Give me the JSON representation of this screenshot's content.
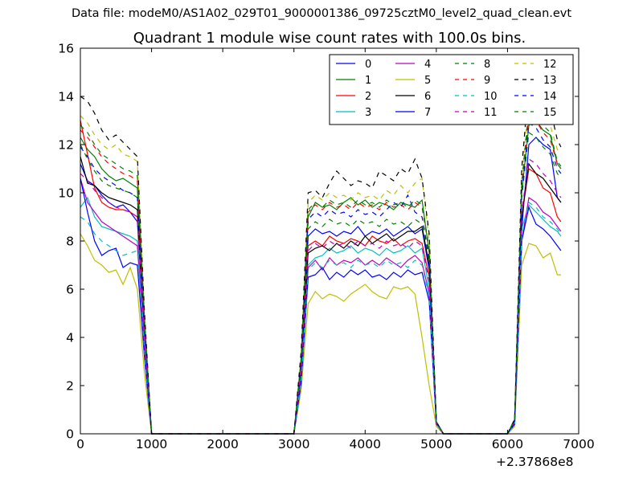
{
  "figure_header": "Data file: modeM0/AS1A02_029T01_9000001386_09725cztM0_level2_quad_clean.evt",
  "chart_data": {
    "type": "line",
    "title": "Quadrant 1 module wise count rates with 100.0s bins.",
    "xlabel": "",
    "ylabel": "",
    "x_offset_label": "+2.37868e8",
    "xlim": [
      0,
      7000
    ],
    "ylim": [
      0,
      16
    ],
    "xticks": [
      0,
      1000,
      2000,
      3000,
      4000,
      5000,
      6000,
      7000
    ],
    "yticks": [
      0,
      2,
      4,
      6,
      8,
      10,
      12,
      14,
      16
    ],
    "grid": false,
    "legend_position": "top-right",
    "legend_columns": 4,
    "x": [
      0,
      100,
      200,
      300,
      400,
      500,
      600,
      700,
      800,
      900,
      1000,
      1100,
      2000,
      3000,
      3100,
      3200,
      3300,
      3400,
      3500,
      3600,
      3700,
      3800,
      3900,
      4000,
      4100,
      4200,
      4300,
      4400,
      4500,
      4600,
      4700,
      4800,
      4900,
      5000,
      5100,
      6000,
      6100,
      6200,
      6300,
      6400,
      6500,
      6600,
      6700,
      6750
    ],
    "series": [
      {
        "name": "0",
        "color": "#0000ff",
        "style": "solid",
        "values": [
          11.2,
          10.5,
          10.3,
          9.9,
          9.6,
          9.4,
          9.5,
          9.2,
          8.8,
          4.0,
          0,
          0,
          0,
          0,
          2.5,
          8.2,
          8.5,
          8.3,
          8.4,
          8.2,
          8.4,
          8.3,
          8.6,
          8.2,
          8.4,
          8.3,
          8.5,
          8.2,
          8.4,
          8.6,
          8.3,
          8.5,
          6.8,
          0.5,
          0,
          0,
          0.5,
          8.5,
          12.0,
          12.3,
          12.0,
          11.8,
          9.8,
          9.6
        ]
      },
      {
        "name": "1",
        "color": "#008000",
        "style": "solid",
        "values": [
          12.3,
          11.8,
          11.5,
          11.0,
          10.7,
          10.5,
          10.6,
          10.4,
          10.2,
          4.5,
          0,
          0,
          0,
          0,
          3.0,
          9.0,
          9.6,
          9.4,
          9.5,
          9.3,
          9.6,
          9.8,
          9.5,
          9.7,
          9.4,
          9.6,
          9.5,
          9.3,
          9.6,
          9.5,
          9.4,
          9.7,
          7.5,
          0.5,
          0,
          0,
          0.6,
          10.0,
          12.8,
          13.0,
          12.6,
          12.4,
          11.2,
          11.0
        ]
      },
      {
        "name": "2",
        "color": "#ff0000",
        "style": "solid",
        "values": [
          13.0,
          11.6,
          10.2,
          9.6,
          9.4,
          9.3,
          9.3,
          9.2,
          9.0,
          4.2,
          0,
          0,
          0,
          0,
          2.8,
          7.8,
          8.0,
          7.8,
          8.2,
          8.0,
          7.9,
          8.1,
          8.0,
          7.8,
          8.2,
          8.0,
          7.9,
          8.1,
          7.8,
          8.0,
          8.1,
          7.9,
          6.5,
          0.4,
          0,
          0,
          0.5,
          9.0,
          11.0,
          10.8,
          10.2,
          10.0,
          9.0,
          8.8
        ]
      },
      {
        "name": "3",
        "color": "#00bfbf",
        "style": "solid",
        "values": [
          9.4,
          9.8,
          9.0,
          8.6,
          8.5,
          8.4,
          8.3,
          8.2,
          8.0,
          3.8,
          0,
          0,
          0,
          0,
          2.3,
          7.0,
          7.3,
          7.4,
          7.7,
          7.5,
          7.6,
          7.8,
          7.5,
          7.7,
          7.6,
          7.4,
          7.7,
          7.5,
          7.6,
          7.8,
          7.5,
          7.7,
          6.0,
          0.4,
          0,
          0,
          0.4,
          8.5,
          9.5,
          9.2,
          8.9,
          8.6,
          8.4,
          8.2
        ]
      },
      {
        "name": "4",
        "color": "#bf00bf",
        "style": "solid",
        "values": [
          10.6,
          9.6,
          9.2,
          8.8,
          8.6,
          8.4,
          8.2,
          8.0,
          7.8,
          3.6,
          0,
          0,
          0,
          0,
          2.2,
          6.9,
          7.2,
          6.8,
          7.3,
          7.0,
          7.2,
          7.1,
          7.3,
          7.0,
          7.2,
          7.0,
          7.3,
          7.1,
          6.9,
          7.2,
          7.4,
          7.1,
          5.8,
          0.4,
          0,
          0,
          0.4,
          8.0,
          9.8,
          9.6,
          9.2,
          9.0,
          8.6,
          8.4
        ]
      },
      {
        "name": "5",
        "color": "#bfbf00",
        "style": "solid",
        "values": [
          8.3,
          7.8,
          7.2,
          7.0,
          6.7,
          6.8,
          6.2,
          6.9,
          6.0,
          2.5,
          0,
          0,
          0,
          0,
          1.8,
          5.4,
          5.9,
          5.6,
          5.8,
          5.7,
          5.5,
          5.8,
          6.0,
          6.2,
          5.9,
          5.7,
          5.6,
          6.1,
          6.0,
          6.1,
          5.8,
          4.0,
          2.0,
          0.3,
          0,
          0,
          0.3,
          7.0,
          7.9,
          7.8,
          7.3,
          7.5,
          6.6,
          6.6
        ]
      },
      {
        "name": "6",
        "color": "#000000",
        "style": "solid",
        "values": [
          11.5,
          10.4,
          10.3,
          10.0,
          9.8,
          9.7,
          9.6,
          9.5,
          9.3,
          4.3,
          0,
          0,
          0,
          0,
          2.7,
          7.5,
          7.7,
          7.8,
          7.6,
          7.9,
          7.7,
          8.0,
          7.8,
          8.2,
          7.9,
          8.1,
          8.3,
          8.0,
          8.2,
          8.4,
          8.4,
          8.6,
          7.0,
          0.5,
          0,
          0,
          0.5,
          9.0,
          11.2,
          10.8,
          10.6,
          10.2,
          9.8,
          9.6
        ]
      },
      {
        "name": "7",
        "color": "#0000ff",
        "style": "solid",
        "values": [
          10.6,
          9.2,
          8.0,
          7.4,
          7.6,
          7.7,
          6.9,
          7.1,
          7.0,
          3.2,
          0,
          0,
          0,
          0,
          2.1,
          6.5,
          6.6,
          6.9,
          6.4,
          6.7,
          6.5,
          6.8,
          6.6,
          6.8,
          6.5,
          6.6,
          6.4,
          6.7,
          6.5,
          6.8,
          6.6,
          6.7,
          5.5,
          0.4,
          0,
          0,
          0.4,
          8.0,
          9.4,
          8.7,
          8.5,
          8.2,
          7.8,
          7.6
        ]
      },
      {
        "name": "8",
        "color": "#008000",
        "style": "dashed",
        "values": [
          12.0,
          11.4,
          10.9,
          10.5,
          10.3,
          10.2,
          10.1,
          10.0,
          9.8,
          4.4,
          0,
          0,
          0,
          0,
          2.9,
          8.5,
          8.8,
          8.6,
          8.9,
          8.7,
          8.8,
          8.6,
          8.9,
          8.7,
          8.8,
          8.6,
          8.9,
          8.7,
          8.8,
          8.6,
          8.9,
          8.7,
          7.2,
          0.5,
          0,
          0,
          0.5,
          9.8,
          12.5,
          12.3,
          11.9,
          11.6,
          10.8,
          10.6
        ]
      },
      {
        "name": "9",
        "color": "#ff0000",
        "style": "dashed",
        "values": [
          12.6,
          12.3,
          11.9,
          11.5,
          11.2,
          11.0,
          10.8,
          10.7,
          10.5,
          4.7,
          0,
          0,
          0,
          0,
          3.1,
          9.2,
          9.5,
          9.3,
          9.6,
          9.4,
          9.5,
          9.3,
          9.6,
          9.4,
          9.5,
          9.3,
          9.6,
          9.4,
          9.5,
          9.3,
          9.6,
          9.4,
          7.6,
          0.5,
          0,
          0,
          0.6,
          10.3,
          13.2,
          13.0,
          12.5,
          12.2,
          11.2,
          11.0
        ]
      },
      {
        "name": "10",
        "color": "#00bfbf",
        "style": "dashed",
        "values": [
          9.0,
          8.8,
          8.3,
          8.0,
          7.8,
          7.6,
          7.4,
          7.5,
          7.6,
          3.5,
          0,
          0,
          0,
          0,
          2.2,
          6.8,
          7.1,
          6.9,
          7.2,
          7.0,
          7.1,
          6.9,
          7.2,
          7.0,
          7.1,
          6.9,
          7.2,
          7.0,
          7.1,
          6.9,
          7.2,
          7.0,
          5.7,
          0.4,
          0,
          0,
          0.4,
          8.2,
          9.6,
          9.4,
          9.0,
          8.8,
          8.5,
          8.3
        ]
      },
      {
        "name": "11",
        "color": "#bf00bf",
        "style": "dashed",
        "values": [
          10.8,
          10.5,
          10.1,
          9.8,
          9.6,
          9.4,
          9.3,
          9.2,
          9.0,
          4.1,
          0,
          0,
          0,
          0,
          2.6,
          7.6,
          7.9,
          7.7,
          8.0,
          7.8,
          7.9,
          7.7,
          8.0,
          7.8,
          7.9,
          7.7,
          8.0,
          7.8,
          7.9,
          7.7,
          8.0,
          7.8,
          6.3,
          0.4,
          0,
          0,
          0.5,
          9.2,
          11.4,
          11.2,
          10.8,
          10.5,
          10.0,
          9.8
        ]
      },
      {
        "name": "12",
        "color": "#bfbf00",
        "style": "dashed",
        "values": [
          13.2,
          12.9,
          12.4,
          12.0,
          11.8,
          12.0,
          11.6,
          11.5,
          11.3,
          5.0,
          0,
          0,
          0,
          0,
          3.2,
          9.6,
          9.9,
          9.7,
          10.0,
          9.8,
          9.9,
          9.7,
          10.0,
          9.8,
          9.9,
          9.7,
          10.1,
          9.9,
          10.3,
          10.0,
          10.4,
          10.6,
          8.0,
          0.5,
          0,
          0,
          0.6,
          10.6,
          13.8,
          13.6,
          13.1,
          12.8,
          11.8,
          11.6
        ]
      },
      {
        "name": "13",
        "color": "#000000",
        "style": "dashed",
        "values": [
          14.0,
          13.8,
          13.3,
          12.6,
          12.2,
          12.4,
          12.1,
          11.8,
          11.5,
          5.1,
          0,
          0,
          0,
          0,
          3.4,
          10.0,
          10.1,
          9.8,
          10.4,
          10.9,
          10.6,
          10.3,
          10.5,
          10.4,
          10.2,
          10.9,
          10.7,
          10.5,
          11.0,
          10.8,
          11.4,
          10.6,
          8.3,
          0.5,
          0,
          0,
          0.6,
          11.0,
          14.6,
          14.3,
          13.9,
          13.5,
          12.2,
          11.9
        ]
      },
      {
        "name": "14",
        "color": "#0000ff",
        "style": "dashed",
        "values": [
          11.9,
          11.5,
          11.0,
          10.7,
          10.5,
          10.3,
          10.1,
          10.0,
          9.8,
          4.4,
          0,
          0,
          0,
          0,
          2.9,
          8.9,
          9.2,
          9.0,
          9.3,
          9.1,
          9.2,
          9.0,
          9.3,
          9.1,
          9.2,
          9.0,
          9.3,
          9.6,
          9.4,
          9.9,
          9.2,
          9.0,
          7.3,
          0.5,
          0,
          0,
          0.5,
          10.0,
          12.9,
          12.7,
          12.2,
          11.9,
          11.0,
          10.8
        ]
      },
      {
        "name": "15",
        "color": "#008000",
        "style": "dashed",
        "values": [
          12.8,
          12.5,
          12.0,
          11.6,
          11.4,
          11.2,
          11.0,
          10.9,
          10.7,
          4.8,
          0,
          0,
          0,
          0,
          3.1,
          9.3,
          9.6,
          9.4,
          9.7,
          9.5,
          9.6,
          9.4,
          9.7,
          9.5,
          9.6,
          9.4,
          9.7,
          9.5,
          9.6,
          9.4,
          9.7,
          9.5,
          7.7,
          0.5,
          0,
          0,
          0.6,
          10.4,
          13.5,
          13.3,
          12.8,
          12.5,
          11.3,
          11.1
        ]
      }
    ]
  }
}
